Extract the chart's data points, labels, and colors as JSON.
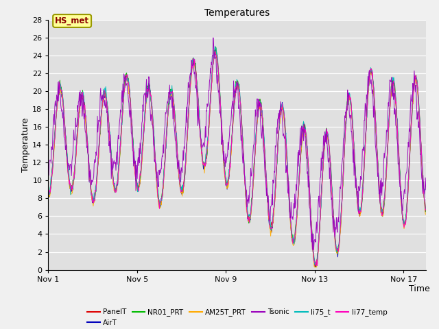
{
  "title": "Temperatures",
  "xlabel": "Time",
  "ylabel": "Temperature",
  "ylim": [
    0,
    28
  ],
  "yticks": [
    0,
    2,
    4,
    6,
    8,
    10,
    12,
    14,
    16,
    18,
    20,
    22,
    24,
    26,
    28
  ],
  "xtick_labels": [
    "Nov 1",
    "Nov 5",
    "Nov 9",
    "Nov 13",
    "Nov 17"
  ],
  "xtick_positions": [
    0,
    4,
    8,
    12,
    16
  ],
  "series_names": [
    "PanelT",
    "AirT",
    "NR01_PRT",
    "AM25T_PRT",
    "Tsonic",
    "li75_t",
    "li77_temp"
  ],
  "series_colors": [
    "#dd0000",
    "#0000bb",
    "#00bb00",
    "#ffaa00",
    "#9900bb",
    "#00bbbb",
    "#ff00bb"
  ],
  "annotation_text": "HS_met",
  "n_days": 17,
  "points_per_day": 48,
  "fig_width": 6.4,
  "fig_height": 4.8,
  "dpi": 100
}
